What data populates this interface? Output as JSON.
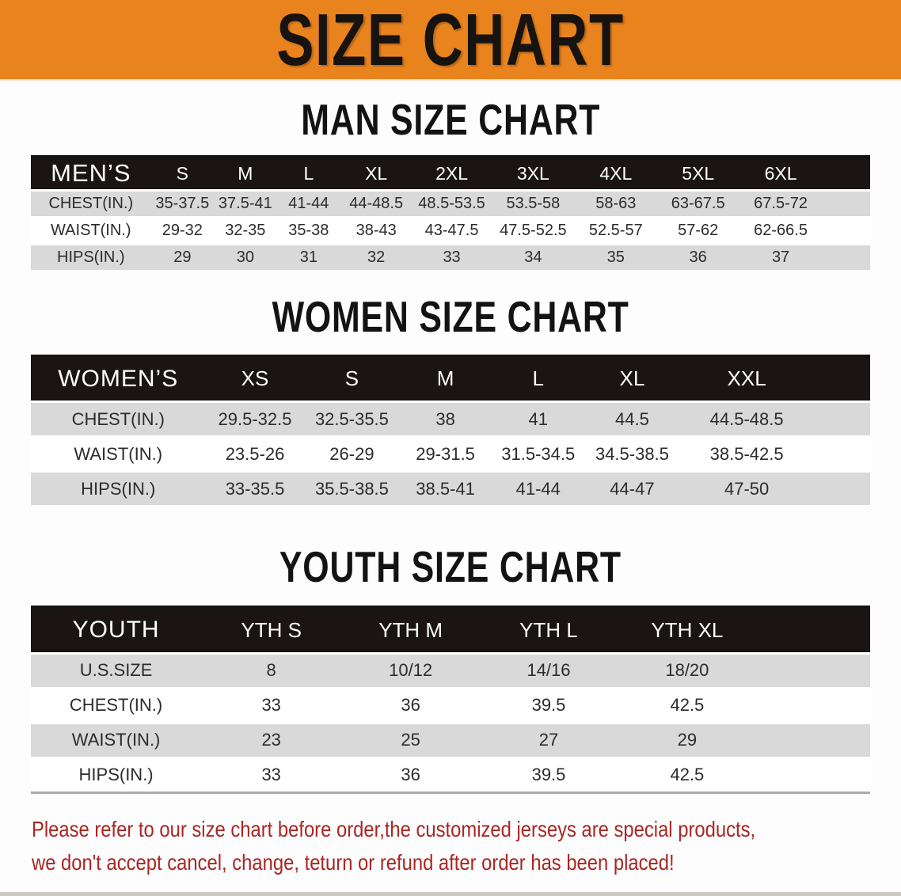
{
  "banner": {
    "title": "SIZE CHART",
    "bg_color": "#E8831E"
  },
  "sections": [
    {
      "id": "men",
      "heading": "MAN SIZE CHART",
      "group_label": "MEN’S",
      "columns": [
        "S",
        "M",
        "L",
        "XL",
        "2XL",
        "3XL",
        "4XL",
        "5XL",
        "6XL"
      ],
      "rows": [
        {
          "label": "CHEST(IN.)",
          "values": [
            "35-37.5",
            "37.5-41",
            "41-44",
            "44-48.5",
            "48.5-53.5",
            "53.5-58",
            "58-63",
            "63-67.5",
            "67.5-72"
          ]
        },
        {
          "label": "WAIST(IN.)",
          "values": [
            "29-32",
            "32-35",
            "35-38",
            "38-43",
            "43-47.5",
            "47.5-52.5",
            "52.5-57",
            "57-62",
            "62-66.5"
          ]
        },
        {
          "label": "HIPS(IN.)",
          "values": [
            "29",
            "30",
            "31",
            "32",
            "33",
            "34",
            "35",
            "36",
            "37"
          ]
        }
      ]
    },
    {
      "id": "women",
      "heading": "WOMEN SIZE CHART",
      "group_label": "WOMEN’S",
      "columns": [
        "XS",
        "S",
        "M",
        "L",
        "XL",
        "XXL"
      ],
      "rows": [
        {
          "label": "CHEST(IN.)",
          "values": [
            "29.5-32.5",
            "32.5-35.5",
            "38",
            "41",
            "44.5",
            "44.5-48.5"
          ]
        },
        {
          "label": "WAIST(IN.)",
          "values": [
            "23.5-26",
            "26-29",
            "29-31.5",
            "31.5-34.5",
            "34.5-38.5",
            "38.5-42.5"
          ]
        },
        {
          "label": "HIPS(IN.)",
          "values": [
            "33-35.5",
            "35.5-38.5",
            "38.5-41",
            "41-44",
            "44-47",
            "47-50"
          ]
        }
      ]
    },
    {
      "id": "youth",
      "heading": "YOUTH SIZE CHART",
      "group_label": "YOUTH",
      "columns": [
        "YTH S",
        "YTH M",
        "YTH L",
        "YTH XL"
      ],
      "rows": [
        {
          "label": "U.S.SIZE",
          "values": [
            "8",
            "10/12",
            "14/16",
            "18/20"
          ]
        },
        {
          "label": "CHEST(IN.)",
          "values": [
            "33",
            "36",
            "39.5",
            "42.5"
          ]
        },
        {
          "label": "WAIST(IN.)",
          "values": [
            "23",
            "25",
            "27",
            "29"
          ]
        },
        {
          "label": "HIPS(IN.)",
          "values": [
            "33",
            "36",
            "39.5",
            "42.5"
          ]
        }
      ]
    }
  ],
  "footer": {
    "line1": "Please refer to our size chart before order,the customized jerseys are special products,",
    "line2": "we don't accept cancel, change, teturn or refund after order has been placed!",
    "text_color": "#A82623"
  }
}
